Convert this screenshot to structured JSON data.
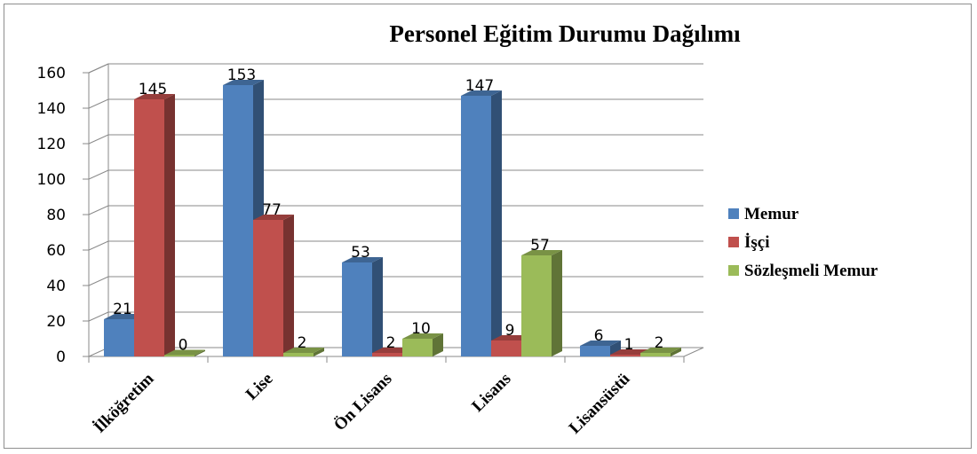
{
  "chart_data": {
    "type": "bar",
    "title": "Personel Eğitim Durumu Dağılımı",
    "categories": [
      "İlköğretim",
      "Lise",
      "Ön Lisans",
      "Lisans",
      "Lisansüstü"
    ],
    "series": [
      {
        "name": "Memur",
        "values": [
          21,
          153,
          53,
          147,
          6
        ],
        "color": "#4f81bd"
      },
      {
        "name": "İşçi",
        "values": [
          145,
          77,
          2,
          9,
          1
        ],
        "color": "#c0504d"
      },
      {
        "name": "Sözleşmeli Memur",
        "values": [
          0,
          2,
          10,
          57,
          2
        ],
        "color": "#9bbb59"
      }
    ],
    "ylim": [
      0,
      160
    ],
    "yticks": [
      0,
      20,
      40,
      60,
      80,
      100,
      120,
      140,
      160
    ],
    "grid": true,
    "legend_position": "right",
    "style": "3d-clustered-column"
  }
}
